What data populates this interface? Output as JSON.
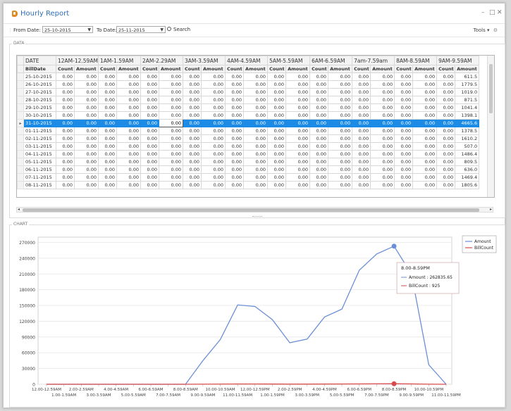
{
  "window": {
    "title": "Hourly Report",
    "minimize": "–",
    "maximize": "□",
    "close": "✕"
  },
  "toolbar": {
    "from_label": "From Date:",
    "from_value": "25-10-2015",
    "to_label": "To Date:",
    "to_value": "25-11-2015",
    "search_label": "Search",
    "tools_label": "Tools ▾"
  },
  "groups": {
    "data_label": "DATA",
    "chart_label": "CHART"
  },
  "grid": {
    "hour_headers": [
      "12AM-12.59AM",
      "1AM-1.59AM",
      "2AM-2.29AM",
      "3AM-3.59AM",
      "4AM-4.59AM",
      "5AM-5.59AM",
      "6AM-6.59AM",
      "7am-7.59am",
      "8AM-8.59AM",
      "9AM-9.59AM"
    ],
    "first_header": "DATE",
    "sub_first": "BillDate",
    "sub_count": "Count",
    "sub_amount": "Amount",
    "rows": [
      {
        "date": "25-10-2015",
        "vals": [
          "0.00",
          "0.00",
          "0.00",
          "0.00",
          "0.00",
          "0.00",
          "0.00",
          "0.00",
          "0.00",
          "0.00",
          "0.00",
          "0.00",
          "0.00",
          "0.00",
          "0.00",
          "0.00",
          "0.00",
          "0.00",
          "0.00",
          "611.5"
        ]
      },
      {
        "date": "26-10-2015",
        "vals": [
          "0.00",
          "0.00",
          "0.00",
          "0.00",
          "0.00",
          "0.00",
          "0.00",
          "0.00",
          "0.00",
          "0.00",
          "0.00",
          "0.00",
          "0.00",
          "0.00",
          "0.00",
          "0.00",
          "0.00",
          "0.00",
          "0.00",
          "1779.5"
        ]
      },
      {
        "date": "27-10-2015",
        "vals": [
          "0.00",
          "0.00",
          "0.00",
          "0.00",
          "0.00",
          "0.00",
          "0.00",
          "0.00",
          "0.00",
          "0.00",
          "0.00",
          "0.00",
          "0.00",
          "0.00",
          "0.00",
          "0.00",
          "0.00",
          "0.00",
          "0.00",
          "1019.0"
        ]
      },
      {
        "date": "28-10-2015",
        "vals": [
          "0.00",
          "0.00",
          "0.00",
          "0.00",
          "0.00",
          "0.00",
          "0.00",
          "0.00",
          "0.00",
          "0.00",
          "0.00",
          "0.00",
          "0.00",
          "0.00",
          "0.00",
          "0.00",
          "0.00",
          "0.00",
          "0.00",
          "871.5"
        ]
      },
      {
        "date": "29-10-2015",
        "vals": [
          "0.00",
          "0.00",
          "0.00",
          "0.00",
          "0.00",
          "0.00",
          "0.00",
          "0.00",
          "0.00",
          "0.00",
          "0.00",
          "0.00",
          "0.00",
          "0.00",
          "0.00",
          "0.00",
          "0.00",
          "0.00",
          "0.00",
          "1041.4"
        ]
      },
      {
        "date": "30-10-2015",
        "vals": [
          "0.00",
          "0.00",
          "0.00",
          "0.00",
          "0.00",
          "0.00",
          "0.00",
          "0.00",
          "0.00",
          "0.00",
          "0.00",
          "0.00",
          "0.00",
          "0.00",
          "0.00",
          "0.00",
          "0.00",
          "0.00",
          "0.00",
          "1398.1"
        ]
      },
      {
        "date": "31-10-2015",
        "vals": [
          "0.00",
          "0.00",
          "0.00",
          "0.00",
          "0.00",
          "0.00",
          "0.00",
          "0.00",
          "0.00",
          "0.00",
          "0.00",
          "0.00",
          "0.00",
          "0.00",
          "0.00",
          "0.00",
          "0.00",
          "0.00",
          "0.00",
          "4665.6"
        ],
        "selected": true
      },
      {
        "date": "01-11-2015",
        "vals": [
          "0.00",
          "0.00",
          "0.00",
          "0.00",
          "0.00",
          "0.00",
          "0.00",
          "0.00",
          "0.00",
          "0.00",
          "0.00",
          "0.00",
          "0.00",
          "0.00",
          "0.00",
          "0.00",
          "0.00",
          "0.00",
          "0.00",
          "1378.5"
        ]
      },
      {
        "date": "02-11-2015",
        "vals": [
          "0.00",
          "0.00",
          "0.00",
          "0.00",
          "0.00",
          "0.00",
          "0.00",
          "0.00",
          "0.00",
          "0.00",
          "0.00",
          "0.00",
          "0.00",
          "0.00",
          "0.00",
          "0.00",
          "0.00",
          "0.00",
          "0.00",
          "1610.2"
        ]
      },
      {
        "date": "03-11-2015",
        "vals": [
          "0.00",
          "0.00",
          "0.00",
          "0.00",
          "0.00",
          "0.00",
          "0.00",
          "0.00",
          "0.00",
          "0.00",
          "0.00",
          "0.00",
          "0.00",
          "0.00",
          "0.00",
          "0.00",
          "0.00",
          "0.00",
          "0.00",
          "507.0"
        ]
      },
      {
        "date": "04-11-2015",
        "vals": [
          "0.00",
          "0.00",
          "0.00",
          "0.00",
          "0.00",
          "0.00",
          "0.00",
          "0.00",
          "0.00",
          "0.00",
          "0.00",
          "0.00",
          "0.00",
          "0.00",
          "0.00",
          "0.00",
          "0.00",
          "0.00",
          "0.00",
          "1486.4"
        ]
      },
      {
        "date": "05-11-2015",
        "vals": [
          "0.00",
          "0.00",
          "0.00",
          "0.00",
          "0.00",
          "0.00",
          "0.00",
          "0.00",
          "0.00",
          "0.00",
          "0.00",
          "0.00",
          "0.00",
          "0.00",
          "0.00",
          "0.00",
          "0.00",
          "0.00",
          "0.00",
          "809.5"
        ]
      },
      {
        "date": "06-11-2015",
        "vals": [
          "0.00",
          "0.00",
          "0.00",
          "0.00",
          "0.00",
          "0.00",
          "0.00",
          "0.00",
          "0.00",
          "0.00",
          "0.00",
          "0.00",
          "0.00",
          "0.00",
          "0.00",
          "0.00",
          "0.00",
          "0.00",
          "0.00",
          "636.0"
        ]
      },
      {
        "date": "07-11-2015",
        "vals": [
          "0.00",
          "0.00",
          "0.00",
          "0.00",
          "0.00",
          "0.00",
          "0.00",
          "0.00",
          "0.00",
          "0.00",
          "0.00",
          "0.00",
          "0.00",
          "0.00",
          "0.00",
          "0.00",
          "0.00",
          "0.00",
          "0.00",
          "1469.4"
        ]
      },
      {
        "date": "08-11-2015",
        "vals": [
          "0.00",
          "0.00",
          "0.00",
          "0.00",
          "0.00",
          "0.00",
          "0.00",
          "0.00",
          "0.00",
          "0.00",
          "0.00",
          "0.00",
          "0.00",
          "0.00",
          "0.00",
          "0.00",
          "0.00",
          "0.00",
          "0.00",
          "1805.6"
        ]
      }
    ]
  },
  "chart_data": {
    "type": "line",
    "categories": [
      "12.00-12.59AM",
      "1.00-1.59AM",
      "2.00-2.59AM",
      "3.00-3.59AM",
      "4.00-4.59AM",
      "5.00-5.59AM",
      "6.00-6.59AM",
      "7.00-7.59AM",
      "8.00-8.59AM",
      "9.00-9.59AM",
      "10.00-10.59AM",
      "11.00-11.59AM",
      "12.00-12.59PM",
      "1.00-1.59PM",
      "2.00-2.59PM",
      "3.00-3.59PM",
      "4.00-4.59PM",
      "5.00-5.59PM",
      "6.00-6.59PM",
      "7.00-7.59PM",
      "8.00-8.59PM",
      "9.00-9.59PM",
      "10.00-10.59PM",
      "11.00-11.59PM"
    ],
    "series": [
      {
        "name": "Amount",
        "color": "#6b8fd6",
        "values": [
          0,
          0,
          0,
          0,
          0,
          0,
          0,
          0,
          0,
          45000,
          85000,
          151000,
          148000,
          123000,
          79000,
          86000,
          128000,
          143000,
          217000,
          248000,
          262835.65,
          210000,
          37000,
          0
        ]
      },
      {
        "name": "BillCount",
        "color": "#d94b4b",
        "values": [
          0,
          0,
          0,
          0,
          0,
          0,
          0,
          0,
          0,
          150,
          300,
          500,
          480,
          400,
          260,
          280,
          420,
          470,
          700,
          800,
          925,
          690,
          120,
          0
        ]
      }
    ],
    "yticks": [
      0,
      30000,
      60000,
      90000,
      120000,
      150000,
      180000,
      210000,
      240000,
      270000
    ],
    "ylim": [
      0,
      280000
    ],
    "grid": true,
    "legend_position": "top-right",
    "highlight": {
      "category": "8.00-8.59PM",
      "title": "8.00-8.59PM",
      "amount_text": "Amount : 262835.65",
      "billcount_text": "BillCount : 925"
    }
  }
}
